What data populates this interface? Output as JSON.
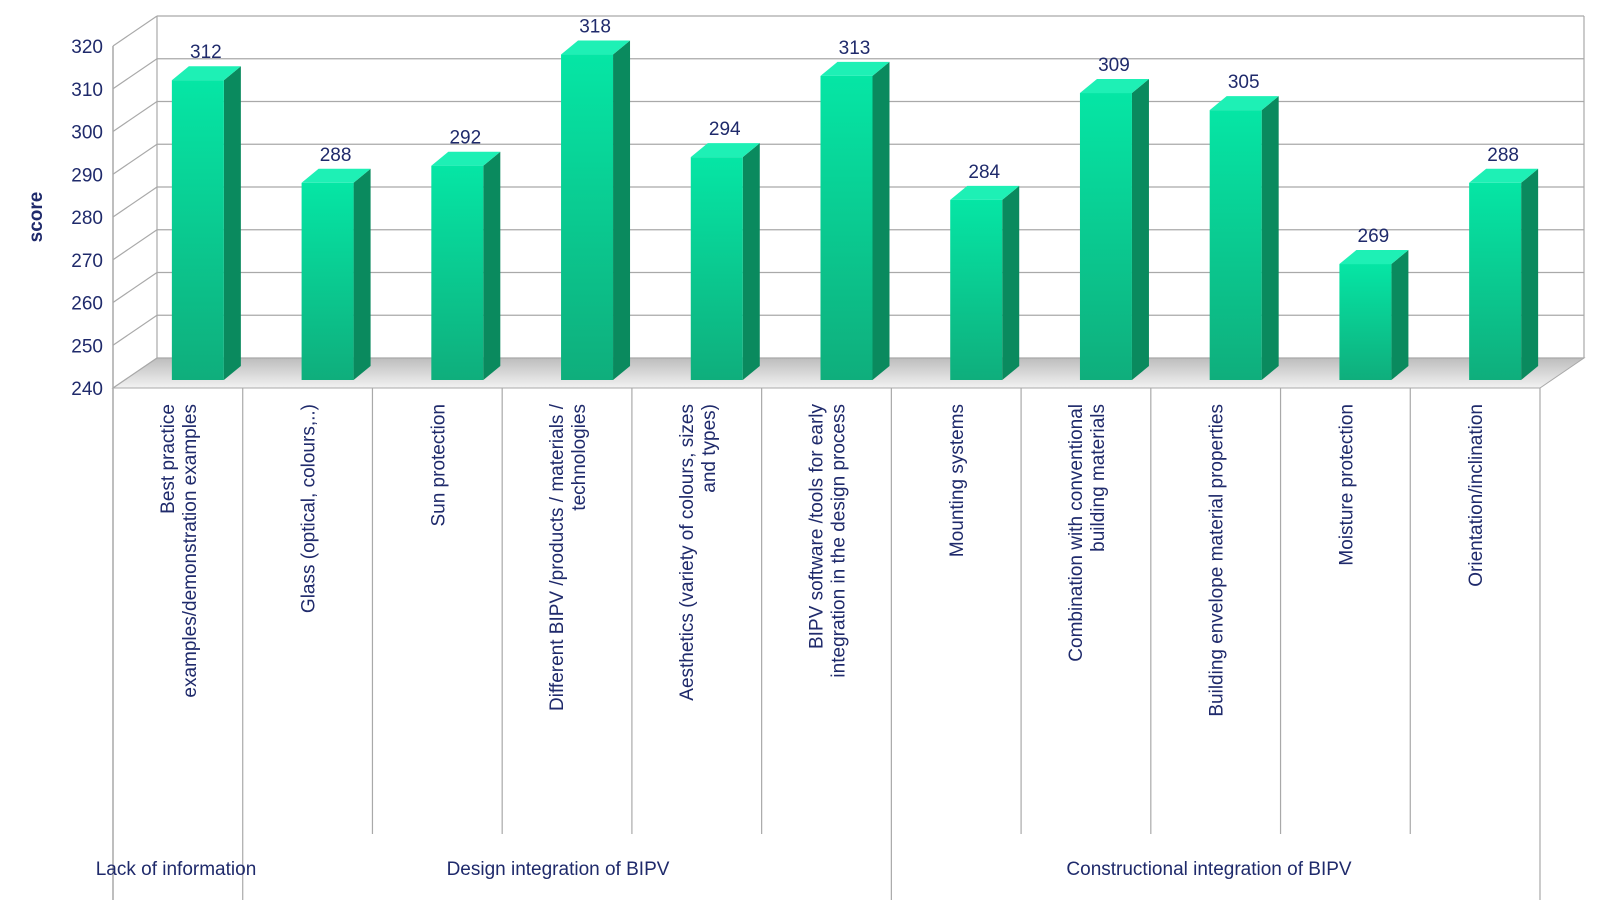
{
  "chart_data": {
    "type": "bar",
    "ylabel": "score",
    "xlabel": "",
    "title": "",
    "ylim": [
      240,
      320
    ],
    "yticks": [
      240,
      250,
      260,
      270,
      280,
      290,
      300,
      310,
      320
    ],
    "grid": true,
    "categories": [
      "Best practice examples/demonstration examples",
      "Glass (optical, colours,..)",
      "Sun protection",
      "Different BIPV /products / materials / technologies",
      "Aesthetics (variety of colours, sizes and types)",
      "BIPV software /tools for early integration in the design process",
      "Mounting systems",
      "Combination with conventional building materials",
      "Building envelope material properties",
      "Moisture protection",
      "Orientation/inclination"
    ],
    "category_lines": [
      [
        "Best practice",
        "examples/demonstration examples"
      ],
      [
        "Glass (optical, colours,..)"
      ],
      [
        "Sun protection"
      ],
      [
        "Different BIPV /products / materials /",
        "technologies"
      ],
      [
        "Aesthetics (variety of colours, sizes",
        "and types)"
      ],
      [
        "BIPV software /tools for early",
        "integration in the design process"
      ],
      [
        "Mounting systems"
      ],
      [
        "Combination with conventional",
        "building materials"
      ],
      [
        "Building envelope material properties"
      ],
      [
        "Moisture protection"
      ],
      [
        "Orientation/inclination"
      ]
    ],
    "values": [
      312,
      288,
      292,
      318,
      294,
      313,
      284,
      309,
      305,
      269,
      288
    ],
    "groups": [
      {
        "label": "Lack of information",
        "span": [
          0,
          0
        ]
      },
      {
        "label": "Design integration of BIPV",
        "span": [
          1,
          5
        ]
      },
      {
        "label": "Constructional integration of BIPV",
        "span": [
          6,
          10
        ]
      }
    ],
    "colors": {
      "bar_front_top": "#05e6a5",
      "bar_front_bottom": "#0fae7c",
      "bar_side": "#0a8a5e",
      "bar_top": "#1ef0b5",
      "text": "#1f2a6b",
      "grid": "#a9a9a9",
      "floor": "#d9d9d9"
    }
  }
}
